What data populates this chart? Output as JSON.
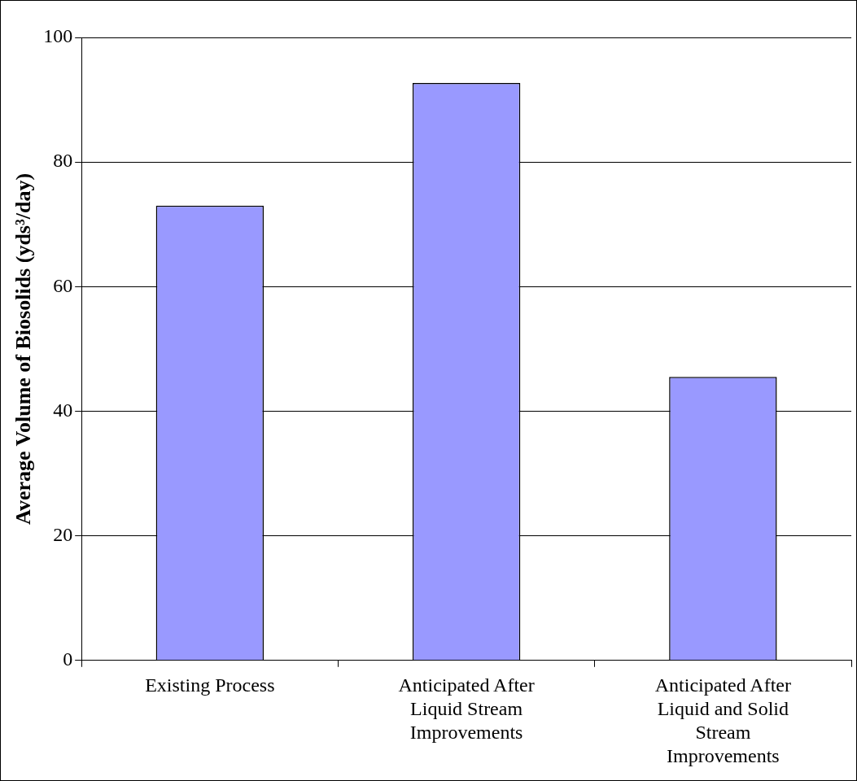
{
  "chart_data": {
    "type": "bar",
    "ylabel": "Average Volume of Biosolids (yds³/day)",
    "categories": [
      "Existing Process",
      "Anticipated After Liquid Stream Improvements",
      "Anticipated After Liquid and Solid Stream Improvements"
    ],
    "values": [
      73,
      92.7,
      45.5
    ],
    "color": "#9999ff",
    "ylim": [
      0,
      100
    ],
    "yticks": [
      0,
      20,
      40,
      60,
      80,
      100
    ],
    "grid": "y",
    "legend": false
  }
}
